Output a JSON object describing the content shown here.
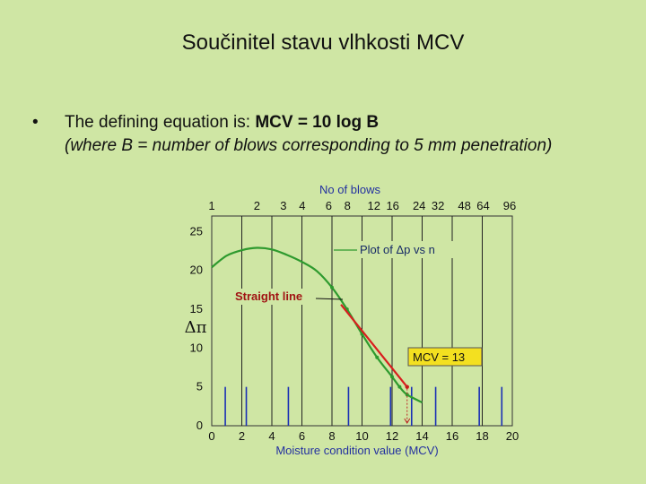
{
  "slide": {
    "title": "Součinitel stavu vlhkosti MCV",
    "bullet_symbol": "•",
    "bullet_lead": "The defining equation is: ",
    "bullet_equation": "MCV = 10 log B",
    "bullet_note": "(where B = number of blows corresponding to 5 mm penetration)"
  },
  "colors": {
    "background": "#cfe6a4",
    "curve": "#2e9a2e",
    "straight_line": "#d81e1e",
    "vertical_bars": "#1a2fb5",
    "annotation_box": "#f3e020"
  },
  "chart_data": {
    "type": "line",
    "title": "",
    "top_axis_label": "No of blows",
    "top_axis_ticks": [
      "1",
      "2",
      "3",
      "4",
      "6",
      "8",
      "12",
      "16",
      "24",
      "32",
      "48",
      "64",
      "96"
    ],
    "xlabel": "Moisture condition value (MCV)",
    "x_ticks": [
      "0",
      "2",
      "4",
      "6",
      "8",
      "10",
      "12",
      "14",
      "16",
      "18",
      "20"
    ],
    "xlim": [
      0,
      20
    ],
    "ylabel": "Δπ",
    "y_ticks": [
      "0",
      "5",
      "10",
      "15",
      "20",
      "25"
    ],
    "ylim": [
      0,
      27
    ],
    "grid": true,
    "series": [
      {
        "name": "Plot of Δp vs n",
        "x": [
          0,
          1,
          2,
          3,
          4,
          5,
          6,
          7,
          8,
          9,
          10,
          11,
          12,
          12.5,
          13,
          14
        ],
        "y": [
          20.4,
          21.9,
          22.6,
          22.9,
          22.7,
          22.0,
          21.1,
          19.9,
          17.8,
          15.0,
          11.8,
          8.8,
          6.3,
          5.0,
          4.0,
          3.0
        ]
      },
      {
        "name": "Straight line",
        "x": [
          8.6,
          13.0
        ],
        "y": [
          15.6,
          5.0
        ]
      }
    ],
    "bars_x": [
      0.9,
      2.3,
      5.1,
      9.1,
      11.9,
      13.3,
      14.9,
      17.8,
      19.3
    ],
    "bars_y": 5,
    "annotations": {
      "plot_label": "Plot of Δp vs n",
      "straight_line": "Straight line",
      "mcv": "MCV = 13",
      "mcv_value": 13
    }
  }
}
